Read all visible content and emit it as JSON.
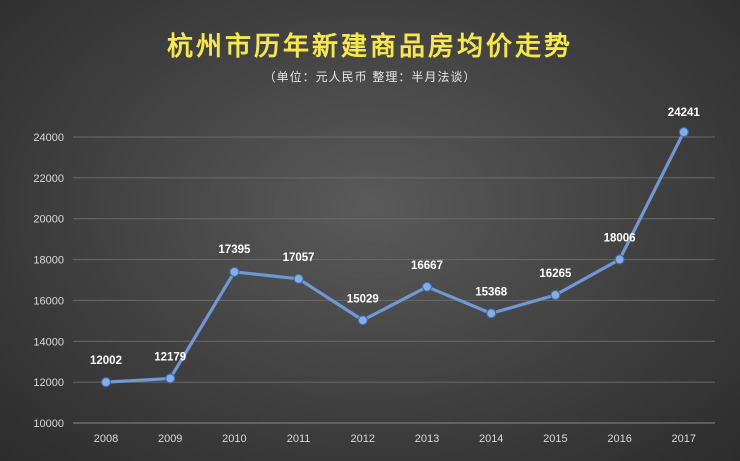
{
  "chart_data": {
    "type": "line",
    "title": "杭州市历年新建商品房均价走势",
    "subtitle": "（单位：元人民币   整理：半月法谈）",
    "xlabel": "",
    "ylabel": "",
    "categories": [
      "2008",
      "2009",
      "2010",
      "2011",
      "2012",
      "2013",
      "2014",
      "2015",
      "2016",
      "2017"
    ],
    "values": [
      12002,
      12179,
      17395,
      17057,
      15029,
      16667,
      15368,
      16265,
      18006,
      24241
    ],
    "ylim": [
      10000,
      24000
    ],
    "yticks": [
      10000,
      12000,
      14000,
      16000,
      18000,
      20000,
      22000,
      24000
    ],
    "grid": true,
    "legend": "none",
    "colors": {
      "line": "#6f98d4",
      "marker": "#86aee6",
      "title": "#f7e84a"
    }
  }
}
